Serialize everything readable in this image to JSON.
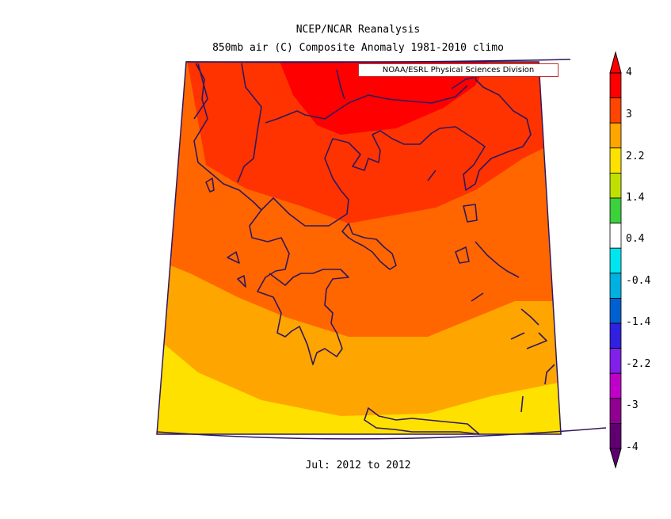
{
  "title_line1": "NCEP/NCAR Reanalysis",
  "title_line2": "850mb air (C) Composite Anomaly 1981-2010 climo",
  "credit": "NOAA/ESRL Physical Sciences Division",
  "period": "Jul: 2012 to 2012",
  "colors": {
    "red": "#ff0000",
    "red_orange": "#ff3300",
    "orange": "#ff6600",
    "light_orange": "#ffa500",
    "yellow": "#ffe100",
    "coast": "#301860"
  },
  "colorbar": {
    "labels": [
      "4",
      "3",
      "2.2",
      "1.4",
      "0.4",
      "-0.4",
      "-1.4",
      "-2.2",
      "-3",
      "-4"
    ],
    "bands": [
      "#ff0000",
      "#ff4500",
      "#ffa500",
      "#ffe100",
      "#bfe000",
      "#3cd23c",
      "#ffffff",
      "#00e6f0",
      "#00b0e0",
      "#0060d0",
      "#3020e0",
      "#8020e8",
      "#c000c8",
      "#900090",
      "#600070"
    ]
  }
}
